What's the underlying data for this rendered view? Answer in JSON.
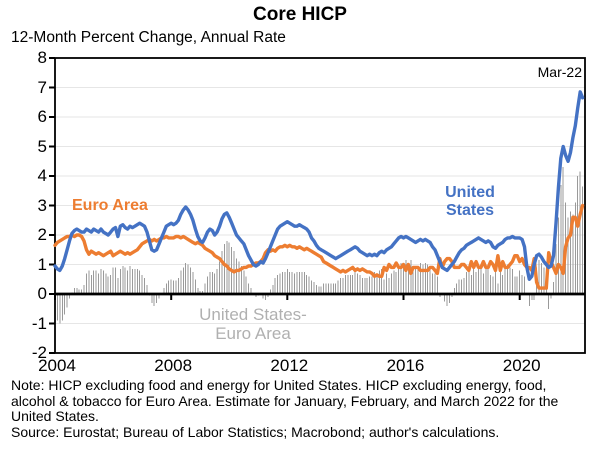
{
  "title": "Core HICP",
  "subtitle": "12-Month Percent Change, Annual Rate",
  "annotations": {
    "euro_area": "Euro Area",
    "united_states_line1": "United",
    "united_states_line2": "States",
    "mar22": "Mar-22",
    "diff_line1": "United States-",
    "diff_line2": "Euro Area"
  },
  "notes": {
    "note": "Note: HICP excluding food and energy for United States. HICP excluding energy, food, alcohol & tobacco for Euro Area. Estimate for January, February, and March 2022 for the United States.",
    "source": "Source: Eurostat; Bureau of Labor Statistics; Macrobond; author's calculations."
  },
  "colors": {
    "us": "#4472C4",
    "ea": "#ED7D31",
    "bars": "#9A9A9A",
    "grid": "#E6E6E6",
    "axis": "#000000",
    "diff_label": "#B0B0B0"
  },
  "chart_data": {
    "type": "line+bar",
    "title": "Core HICP",
    "subtitle": "12-Month Percent Change, Annual Rate",
    "frequency": "monthly",
    "x_start_year": 2004,
    "x_start_month": 1,
    "x_end_label": "Mar-22",
    "xlim": [
      2004,
      2022.25
    ],
    "ylim": [
      -2,
      8
    ],
    "x_ticks": [
      2004,
      2008,
      2012,
      2016,
      2020
    ],
    "y_ticks": [
      -2,
      -1,
      0,
      1,
      2,
      3,
      4,
      5,
      6,
      7,
      8
    ],
    "grid_lines": [
      -1,
      1,
      2,
      3,
      4,
      5,
      6,
      7
    ],
    "legend_position": "in-plot text labels",
    "series": [
      {
        "name": "Euro Area",
        "style": "line",
        "values": [
          1.65,
          1.75,
          1.8,
          1.85,
          1.9,
          1.95,
          1.95,
          2.0,
          1.95,
          2.0,
          2.0,
          1.95,
          1.8,
          1.5,
          1.35,
          1.45,
          1.4,
          1.35,
          1.4,
          1.35,
          1.3,
          1.35,
          1.4,
          1.45,
          1.3,
          1.35,
          1.4,
          1.45,
          1.4,
          1.35,
          1.4,
          1.35,
          1.4,
          1.45,
          1.5,
          1.6,
          1.7,
          1.75,
          1.8,
          1.85,
          1.8,
          1.85,
          1.8,
          1.85,
          1.9,
          1.9,
          1.95,
          1.9,
          1.9,
          1.9,
          1.95,
          1.95,
          1.9,
          1.95,
          1.9,
          1.85,
          1.8,
          1.75,
          1.7,
          1.75,
          1.7,
          1.65,
          1.55,
          1.5,
          1.45,
          1.4,
          1.3,
          1.25,
          1.2,
          1.1,
          1.0,
          0.95,
          0.85,
          0.8,
          0.75,
          0.8,
          0.8,
          0.85,
          0.9,
          0.9,
          0.95,
          0.95,
          1.0,
          1.05,
          1.05,
          1.1,
          1.2,
          1.4,
          1.5,
          1.45,
          1.5,
          1.45,
          1.55,
          1.6,
          1.6,
          1.65,
          1.6,
          1.65,
          1.6,
          1.6,
          1.55,
          1.6,
          1.55,
          1.5,
          1.55,
          1.5,
          1.45,
          1.4,
          1.35,
          1.3,
          1.25,
          1.1,
          1.05,
          1.0,
          0.95,
          0.9,
          0.85,
          0.8,
          0.75,
          0.8,
          0.75,
          0.8,
          0.85,
          0.9,
          0.8,
          0.85,
          0.8,
          0.85,
          0.8,
          0.75,
          0.75,
          0.7,
          0.6,
          0.65,
          0.6,
          0.6,
          0.9,
          0.8,
          1.0,
          0.9,
          0.9,
          1.05,
          0.9,
          0.9,
          1.0,
          0.8,
          1.0,
          0.7,
          0.9,
          0.9,
          0.9,
          0.8,
          0.8,
          0.8,
          0.8,
          0.9,
          0.9,
          0.8,
          0.7,
          1.2,
          0.9,
          1.1,
          1.2,
          1.2,
          1.1,
          0.9,
          0.9,
          0.9,
          1.0,
          1.0,
          0.9,
          0.8,
          1.1,
          0.9,
          1.1,
          0.9,
          0.9,
          1.1,
          0.9,
          0.9,
          1.1,
          1.0,
          0.8,
          1.3,
          0.8,
          1.1,
          0.9,
          0.9,
          1.0,
          1.1,
          1.3,
          1.3,
          1.1,
          1.2,
          1.0,
          0.9,
          0.9,
          0.8,
          1.2,
          0.4,
          0.2,
          0.2,
          0.2,
          0.2,
          1.4,
          1.1,
          0.9,
          0.7,
          1.0,
          0.9,
          0.7,
          1.6,
          1.9,
          2.0,
          2.6,
          2.6,
          2.3,
          2.7,
          3.0
        ]
      },
      {
        "name": "United States",
        "style": "line",
        "values": [
          0.95,
          0.85,
          0.8,
          0.95,
          1.2,
          1.5,
          1.8,
          2.05,
          2.15,
          2.2,
          2.15,
          2.1,
          2.1,
          2.2,
          2.15,
          2.1,
          2.2,
          2.15,
          2.1,
          2.2,
          2.1,
          2.05,
          2.0,
          2.1,
          2.2,
          2.25,
          1.95,
          2.3,
          2.35,
          2.25,
          2.2,
          2.3,
          2.25,
          2.3,
          2.35,
          2.4,
          2.35,
          2.3,
          2.1,
          1.8,
          1.5,
          1.45,
          1.5,
          1.7,
          1.9,
          2.1,
          2.3,
          2.35,
          2.4,
          2.35,
          2.4,
          2.5,
          2.7,
          2.85,
          2.95,
          2.85,
          2.7,
          2.5,
          2.2,
          1.95,
          1.8,
          1.75,
          1.9,
          2.1,
          2.2,
          2.15,
          2.0,
          2.1,
          2.3,
          2.55,
          2.7,
          2.75,
          2.6,
          2.4,
          2.2,
          2.0,
          1.9,
          1.8,
          1.7,
          1.5,
          1.3,
          1.15,
          1.0,
          0.95,
          1.0,
          1.1,
          1.05,
          1.2,
          1.4,
          1.6,
          1.8,
          2.0,
          2.2,
          2.3,
          2.35,
          2.4,
          2.45,
          2.4,
          2.35,
          2.3,
          2.3,
          2.35,
          2.3,
          2.25,
          2.2,
          2.1,
          1.9,
          1.8,
          1.65,
          1.55,
          1.5,
          1.45,
          1.4,
          1.35,
          1.3,
          1.25,
          1.2,
          1.25,
          1.3,
          1.35,
          1.4,
          1.45,
          1.5,
          1.55,
          1.6,
          1.55,
          1.45,
          1.4,
          1.35,
          1.3,
          1.35,
          1.3,
          1.35,
          1.3,
          1.4,
          1.45,
          1.4,
          1.5,
          1.55,
          1.6,
          1.7,
          1.8,
          1.9,
          1.95,
          1.9,
          1.95,
          1.9,
          1.85,
          1.8,
          1.75,
          1.8,
          1.85,
          1.8,
          1.85,
          1.8,
          1.75,
          1.6,
          1.5,
          1.3,
          1.1,
          0.9,
          0.85,
          0.8,
          0.9,
          1.0,
          1.1,
          1.25,
          1.4,
          1.5,
          1.55,
          1.65,
          1.7,
          1.75,
          1.8,
          1.85,
          1.9,
          1.85,
          1.8,
          1.75,
          1.8,
          1.75,
          1.6,
          1.55,
          1.65,
          1.7,
          1.75,
          1.85,
          1.9,
          1.9,
          1.95,
          1.9,
          1.9,
          1.9,
          1.85,
          1.6,
          0.9,
          0.5,
          0.6,
          1.0,
          1.3,
          1.35,
          1.25,
          1.1,
          1.0,
          0.9,
          0.95,
          1.3,
          2.4,
          3.6,
          4.6,
          5.0,
          4.7,
          4.5,
          4.8,
          5.3,
          5.7,
          6.3,
          6.85,
          6.65
        ]
      }
    ],
    "bars": {
      "name": "United States-Euro Area",
      "style": "bar",
      "derivation": "united_states_minus_euro_area"
    }
  }
}
